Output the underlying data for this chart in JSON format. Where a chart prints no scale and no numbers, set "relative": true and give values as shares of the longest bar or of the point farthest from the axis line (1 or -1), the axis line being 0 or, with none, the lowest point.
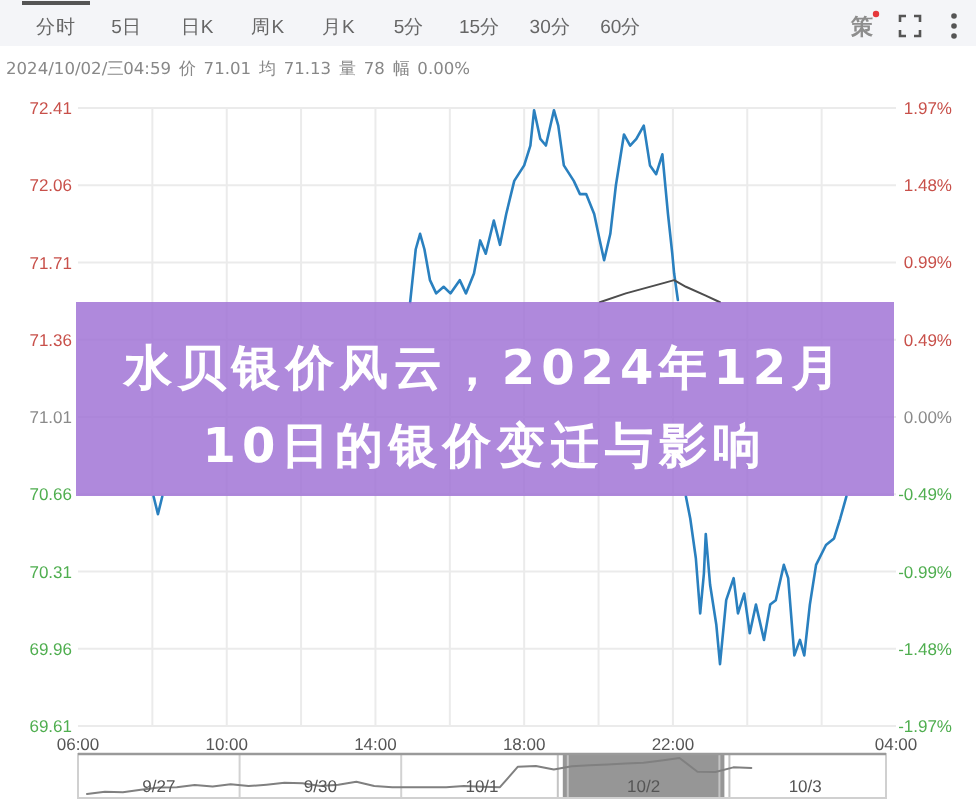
{
  "chart_data": [
    {
      "type": "other",
      "annotations": [
        "分时",
        "5日",
        "日K",
        "周K",
        "月K",
        "5分",
        "15分",
        "30分",
        "60分",
        "策"
      ]
    },
    {
      "type": "line",
      "title": "水贝银价风云，2024年12月10日的银价变迁与影响",
      "subtitle": "2024/10/02/三04:59 价 71.01 均 71.13 量 78 幅 0.00%",
      "xlim": [
        "2024-10-01T06:00",
        "2024-10-02T04:00"
      ],
      "xticks": [
        {
          "value": "2024-10-01T06:00",
          "label": "06:00"
        },
        {
          "value": "2024-10-01T08:00",
          "label": null
        },
        {
          "value": "2024-10-01T10:00",
          "label": "10:00"
        },
        {
          "value": "2024-10-01T12:00",
          "label": null
        },
        {
          "value": "2024-10-01T14:00",
          "label": "14:00"
        },
        {
          "value": "2024-10-01T16:00",
          "label": null
        },
        {
          "value": "2024-10-01T18:00",
          "label": "18:00"
        },
        {
          "value": "2024-10-01T20:00",
          "label": null
        },
        {
          "value": "2024-10-01T22:00",
          "label": "22:00"
        },
        {
          "value": "2024-10-02T00:00",
          "label": null
        },
        {
          "value": "2024-10-02T02:00",
          "label": null
        },
        {
          "value": "2024-10-02T04:00",
          "label": "04:00"
        }
      ],
      "ylim": [
        69.61,
        72.41
      ],
      "yticks": [
        72.41,
        72.06,
        71.71,
        71.36,
        71.01,
        70.66,
        70.31,
        69.96,
        69.61
      ],
      "y2lim": [
        -1.97,
        1.97
      ],
      "y2ticks": [
        {
          "value": 1.97,
          "label": "1.97%"
        },
        {
          "value": 1.48,
          "label": "1.48%"
        },
        {
          "value": 0.99,
          "label": "0.99%"
        },
        {
          "value": 0.49,
          "label": "0.49%"
        },
        {
          "value": 0,
          "label": "0.00%"
        },
        {
          "value": -0.49,
          "label": "-0.49%"
        },
        {
          "value": -0.99,
          "label": "-0.99%"
        },
        {
          "value": -1.48,
          "label": "-1.48%"
        },
        {
          "value": -1.97,
          "label": "-1.97%"
        }
      ],
      "grid": true,
      "series": [
        {
          "color": "#2a80bf",
          "x": [
            "2024-10-01T08:02",
            "2024-10-01T08:09",
            "2024-10-01T08:16"
          ],
          "values": [
            70.65,
            70.57,
            70.65
          ]
        },
        {
          "color": "#2a80bf",
          "x": [
            "2024-10-01T14:56",
            "2024-10-01T15:05",
            "2024-10-01T15:12",
            "2024-10-01T15:19",
            "2024-10-01T15:28",
            "2024-10-01T15:38",
            "2024-10-01T15:50",
            "2024-10-01T16:01",
            "2024-10-01T16:16",
            "2024-10-01T16:26",
            "2024-10-01T16:39",
            "2024-10-01T16:49",
            "2024-10-01T16:58",
            "2024-10-01T17:11",
            "2024-10-01T17:21",
            "2024-10-01T17:31",
            "2024-10-01T17:44",
            "2024-10-01T18:00",
            "2024-10-01T18:10",
            "2024-10-01T18:16",
            "2024-10-01T18:26",
            "2024-10-01T18:35",
            "2024-10-01T18:48",
            "2024-10-01T18:55",
            "2024-10-01T19:04",
            "2024-10-01T19:20",
            "2024-10-01T19:30",
            "2024-10-01T19:40",
            "2024-10-01T19:53",
            "2024-10-01T20:02",
            "2024-10-01T20:09",
            "2024-10-01T20:19",
            "2024-10-01T20:28",
            "2024-10-01T20:41",
            "2024-10-01T20:51",
            "2024-10-01T21:01",
            "2024-10-01T21:13",
            "2024-10-01T21:23",
            "2024-10-01T21:33",
            "2024-10-01T21:43",
            "2024-10-01T21:52",
            "2024-10-01T21:59",
            "2024-10-01T22:02",
            "2024-10-01T22:08"
          ],
          "values": [
            71.53,
            71.77,
            71.84,
            71.77,
            71.63,
            71.57,
            71.6,
            71.57,
            71.63,
            71.57,
            71.66,
            71.81,
            71.75,
            71.9,
            71.79,
            71.93,
            72.08,
            72.15,
            72.24,
            72.4,
            72.27,
            72.24,
            72.4,
            72.33,
            72.15,
            72.08,
            72.02,
            72.02,
            71.93,
            71.81,
            71.72,
            71.84,
            72.06,
            72.29,
            72.24,
            72.27,
            72.33,
            72.15,
            72.11,
            72.2,
            71.93,
            71.75,
            71.66,
            71.54
          ]
        },
        {
          "color": "#2a80bf",
          "x": [
            "2024-10-01T22:21",
            "2024-10-01T22:28",
            "2024-10-01T22:37",
            "2024-10-01T22:44",
            "2024-10-01T22:50",
            "2024-10-01T22:53",
            "2024-10-01T23:00",
            "2024-10-01T23:10",
            "2024-10-01T23:16",
            "2024-10-01T23:26",
            "2024-10-01T23:38",
            "2024-10-01T23:45",
            "2024-10-01T23:55",
            "2024-10-02T00:04",
            "2024-10-02T00:14",
            "2024-10-02T00:27",
            "2024-10-02T00:37",
            "2024-10-02T00:46",
            "2024-10-02T00:59",
            "2024-10-02T01:06",
            "2024-10-02T01:16",
            "2024-10-02T01:25",
            "2024-10-02T01:32",
            "2024-10-02T01:41",
            "2024-10-02T01:51",
            "2024-10-02T02:07",
            "2024-10-02T02:20",
            "2024-10-02T02:30",
            "2024-10-02T02:40"
          ],
          "values": [
            70.65,
            70.55,
            70.37,
            70.12,
            70.3,
            70.48,
            70.25,
            70.07,
            69.89,
            70.18,
            70.28,
            70.12,
            70.21,
            70.03,
            70.16,
            70.0,
            70.16,
            70.18,
            70.34,
            70.28,
            69.93,
            70.0,
            69.93,
            70.16,
            70.34,
            70.43,
            70.46,
            70.55,
            70.65
          ]
        },
        {
          "color": "#4d4d4d",
          "x": [
            "2024-10-01T20:02",
            "2024-10-01T20:44",
            "2024-10-01T21:49",
            "2024-10-01T22:02",
            "2024-10-01T22:21",
            "2024-10-01T22:53",
            "2024-10-01T23:16"
          ],
          "values": [
            71.53,
            71.57,
            71.62,
            71.63,
            71.6,
            71.56,
            71.53
          ]
        }
      ]
    },
    {
      "type": "line",
      "relative": true,
      "categories": [
        null,
        null,
        null,
        null,
        "9/27",
        null,
        null,
        null,
        null,
        null,
        null,
        null,
        null,
        "9/30",
        null,
        null,
        null,
        null,
        null,
        null,
        null,
        null,
        "10/1",
        null,
        null,
        null,
        null,
        null,
        null,
        null,
        null,
        "10/2",
        null,
        null,
        null,
        null,
        null,
        null,
        null,
        null,
        "10/3",
        null,
        null,
        null,
        null
      ],
      "series": [
        {
          "color": "#808080",
          "values": [
            0,
            0.06,
            0.05,
            0.12,
            0.18,
            0.19,
            0.25,
            0.21,
            0.27,
            0.22,
            0.26,
            0.31,
            0.3,
            0.22,
            0.26,
            0.34,
            0.22,
            0.19,
            0.19,
            0.19,
            0.19,
            0.22,
            0.2,
            0.19,
            0.76,
            0.78,
            0.68,
            0.77,
            0.8,
            0.82,
            0.85,
            0.87,
            0.93,
            1,
            0.62,
            0.61,
            0.74,
            0.72,
            null,
            null,
            null,
            null,
            null,
            null,
            null
          ]
        }
      ]
    }
  ]
}
